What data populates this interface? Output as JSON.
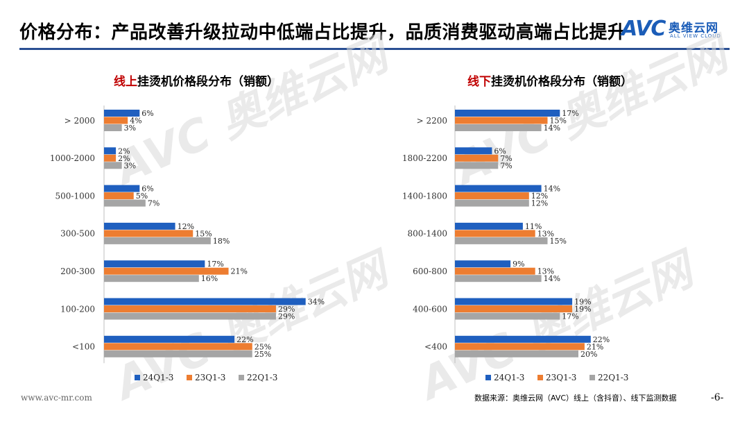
{
  "header": {
    "title": "价格分布：产品改善升级拉动中低端占比提升，品质消费驱动高端占比提升"
  },
  "logo": {
    "mark": "AVC",
    "cn": "奥维云网",
    "en": "ALL VIEW CLOUD"
  },
  "watermark": {
    "text": "AVC 奥维云网",
    "sub": "ALL VIEW CLOUD"
  },
  "colors": {
    "s1": "#1f5fbf",
    "s2": "#ed7d31",
    "s3": "#a5a5a5",
    "title_red": "#c00000",
    "rule": "#2a4f93"
  },
  "footer": {
    "url": "www.avc-mr.com",
    "source": "数据来源：奥维云网（AVC）线上（含抖音）、线下监测数据",
    "page": "-6-"
  },
  "chart_data": [
    {
      "type": "bar",
      "orientation": "horizontal",
      "title_prefix": "线上",
      "title_rest": "挂烫机价格段分布（销额）",
      "categories": [
        "> 2000",
        "1000-2000",
        "500-1000",
        "300-500",
        "200-300",
        "100-200",
        "<100"
      ],
      "series": [
        {
          "name": "24Q1-3",
          "values": [
            6,
            2,
            6,
            12,
            17,
            34,
            22
          ]
        },
        {
          "name": "23Q1-3",
          "values": [
            4,
            2,
            5,
            15,
            21,
            29,
            25
          ]
        },
        {
          "name": "22Q1-3",
          "values": [
            3,
            3,
            7,
            18,
            16,
            29,
            25
          ]
        }
      ],
      "unit": "%",
      "legend": "bottom",
      "grid": false
    },
    {
      "type": "bar",
      "orientation": "horizontal",
      "title_prefix": "线下",
      "title_rest": "挂烫机价格段分布（销额）",
      "categories": [
        "> 2200",
        "1800-2200",
        "1400-1800",
        "800-1400",
        "600-800",
        "400-600",
        "<400"
      ],
      "series": [
        {
          "name": "24Q1-3",
          "values": [
            17,
            6,
            14,
            11,
            9,
            19,
            22
          ]
        },
        {
          "name": "23Q1-3",
          "values": [
            15,
            7,
            12,
            13,
            13,
            19,
            21
          ]
        },
        {
          "name": "22Q1-3",
          "values": [
            14,
            7,
            12,
            15,
            14,
            17,
            20
          ]
        }
      ],
      "unit": "%",
      "legend": "bottom",
      "grid": false
    }
  ]
}
